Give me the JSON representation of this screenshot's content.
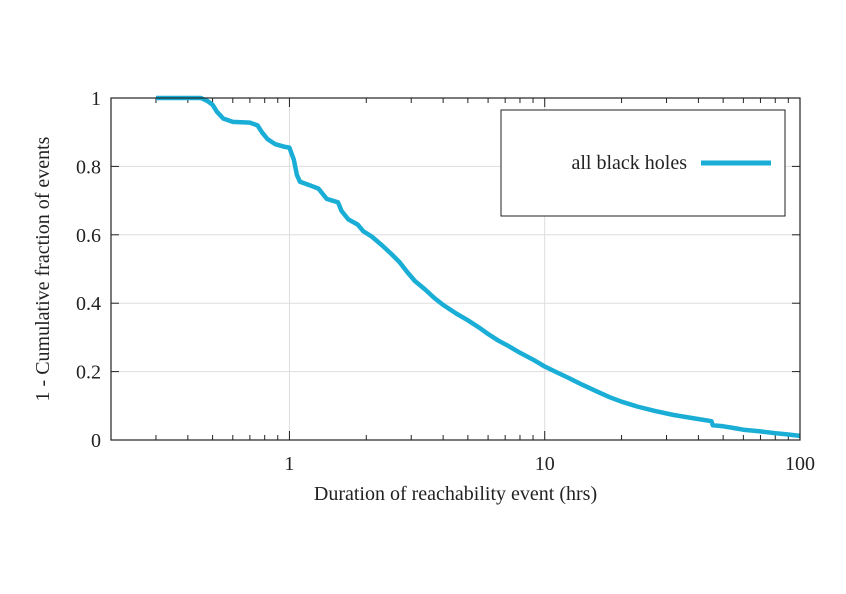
{
  "chart_data": {
    "type": "line",
    "title": "",
    "xlabel": "Duration of reachability event (hrs)",
    "ylabel": "1 - Cumulative fraction of events",
    "x_scale": "log",
    "xlim": [
      0.2,
      100
    ],
    "ylim": [
      0,
      1
    ],
    "grid": true,
    "legend_position": "top-right",
    "x_ticks": [
      {
        "value": 1,
        "label": "1"
      },
      {
        "value": 10,
        "label": "10"
      },
      {
        "value": 100,
        "label": "100"
      }
    ],
    "y_ticks": [
      {
        "value": 0,
        "label": "0"
      },
      {
        "value": 0.2,
        "label": "0.2"
      },
      {
        "value": 0.4,
        "label": "0.4"
      },
      {
        "value": 0.6,
        "label": "0.6"
      },
      {
        "value": 0.8,
        "label": "0.8"
      },
      {
        "value": 1,
        "label": "1"
      }
    ],
    "series": [
      {
        "name": "all black holes",
        "color": "#1aaed6",
        "x": [
          0.3,
          0.45,
          0.48,
          0.5,
          0.52,
          0.55,
          0.6,
          0.7,
          0.75,
          0.78,
          0.82,
          0.88,
          0.95,
          1.0,
          1.04,
          1.07,
          1.1,
          1.2,
          1.3,
          1.4,
          1.55,
          1.6,
          1.7,
          1.85,
          1.95,
          2.1,
          2.3,
          2.5,
          2.7,
          2.9,
          3.1,
          3.4,
          3.7,
          4.0,
          4.5,
          5.0,
          5.5,
          6.0,
          6.6,
          7.2,
          8.0,
          9.0,
          10.0,
          11.0,
          12.5,
          14.0,
          16.0,
          18.0,
          20.0,
          23.0,
          27.0,
          32.0,
          38.0,
          45.0,
          45.5,
          50.0,
          55.0,
          60.0,
          70.0,
          80.0,
          90.0,
          100.0
        ],
        "y": [
          1.0,
          1.0,
          0.99,
          0.98,
          0.96,
          0.94,
          0.93,
          0.928,
          0.92,
          0.9,
          0.88,
          0.865,
          0.858,
          0.855,
          0.82,
          0.775,
          0.755,
          0.745,
          0.735,
          0.705,
          0.695,
          0.67,
          0.645,
          0.63,
          0.61,
          0.595,
          0.57,
          0.545,
          0.52,
          0.49,
          0.465,
          0.44,
          0.415,
          0.395,
          0.37,
          0.35,
          0.33,
          0.31,
          0.29,
          0.275,
          0.255,
          0.235,
          0.215,
          0.2,
          0.18,
          0.162,
          0.142,
          0.125,
          0.112,
          0.098,
          0.085,
          0.073,
          0.064,
          0.055,
          0.043,
          0.04,
          0.035,
          0.03,
          0.025,
          0.02,
          0.016,
          0.012
        ]
      }
    ]
  }
}
